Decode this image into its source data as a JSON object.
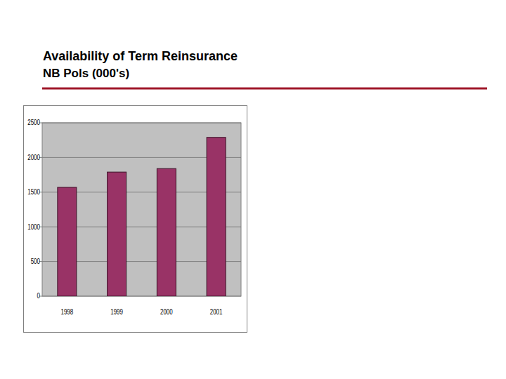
{
  "chart_data": {
    "type": "bar",
    "title": "Availability of Term Reinsurance",
    "subtitle": "NB Pols (000's)",
    "categories": [
      "1998",
      "1999",
      "2000",
      "2001"
    ],
    "values": [
      1570,
      1790,
      1840,
      2290
    ],
    "color": "#993366",
    "ylim": [
      0,
      2500
    ],
    "yticks": [
      0,
      500,
      1000,
      1500,
      2000,
      2500
    ],
    "grid": true
  }
}
